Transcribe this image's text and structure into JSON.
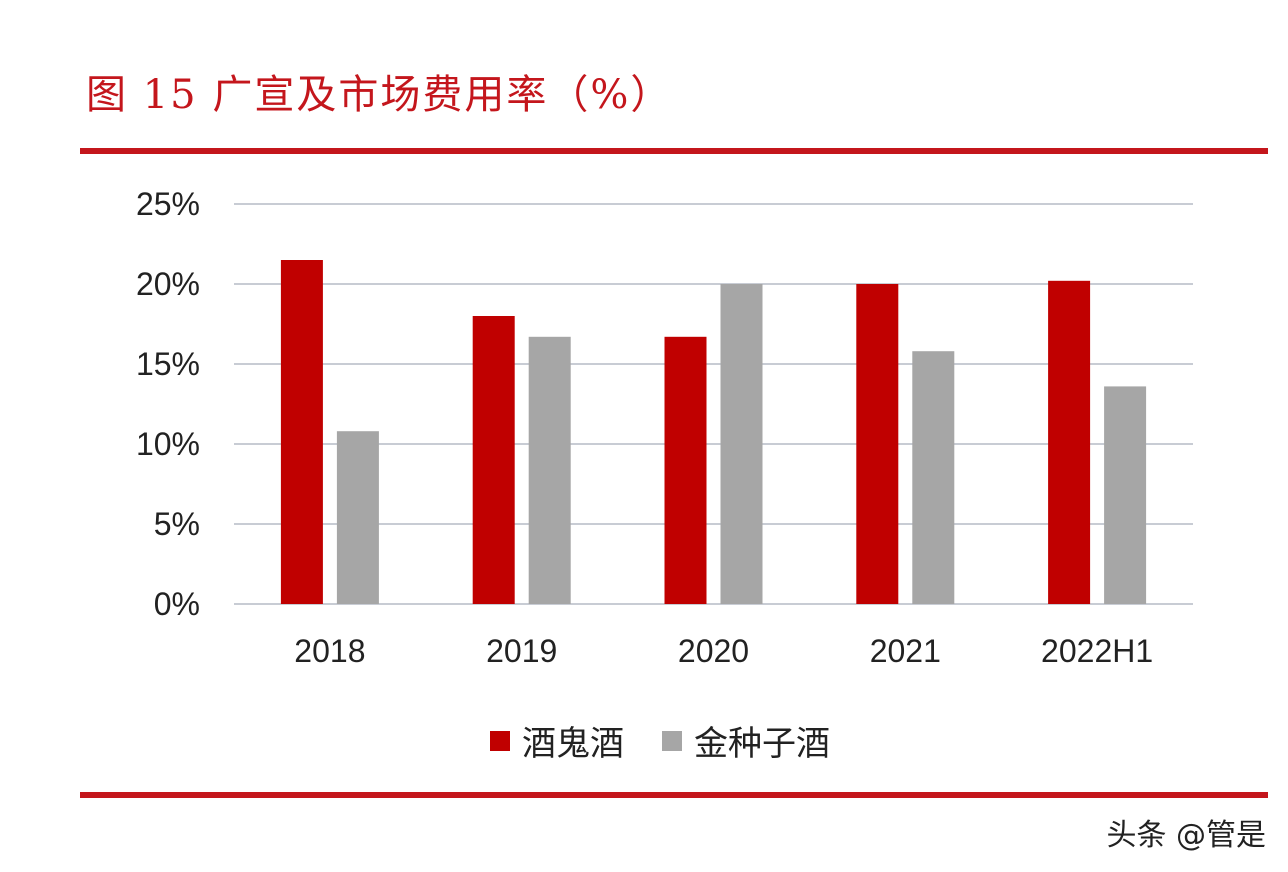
{
  "title": "图 15 广宣及市场费用率（%）",
  "colors": {
    "accent": "#c4161c",
    "series1": "#c00000",
    "series2": "#a6a6a6",
    "grid": "#c8ccd4"
  },
  "chart_data": {
    "type": "bar",
    "title": "图 15 广宣及市场费用率（%）",
    "categories": [
      "2018",
      "2019",
      "2020",
      "2021",
      "2022H1"
    ],
    "series": [
      {
        "name": "酒鬼酒",
        "color": "#c00000",
        "values": [
          21.5,
          18.0,
          16.7,
          20.0,
          20.2
        ]
      },
      {
        "name": "金种子酒",
        "color": "#a6a6a6",
        "values": [
          10.8,
          16.7,
          20.0,
          15.8,
          13.6
        ]
      }
    ],
    "ylim": [
      0,
      25
    ],
    "yticks": [
      "0%",
      "5%",
      "10%",
      "15%",
      "20%",
      "25%"
    ],
    "ytick_values": [
      0,
      5,
      10,
      15,
      20,
      25
    ],
    "grid": true,
    "legend_position": "bottom"
  },
  "watermark": "头条 @管是"
}
